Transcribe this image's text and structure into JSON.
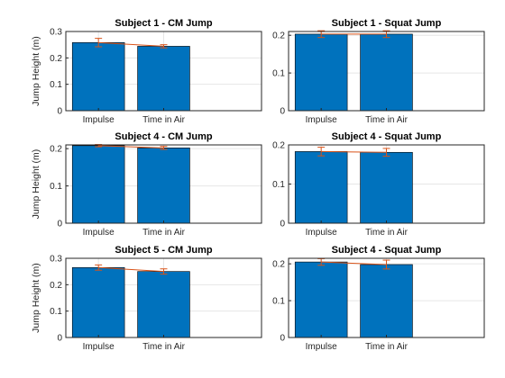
{
  "figure": {
    "bar_color": "#0072BD",
    "errorbar_color": "#D95319",
    "axis_color": "#262626",
    "grid_color": "#E6E6E6"
  },
  "chart_data": [
    {
      "type": "bar",
      "title": "Subject 1 - CM Jump",
      "ylabel": "Jump Height (m)",
      "categories": [
        "Impulse",
        "Time in Air"
      ],
      "values": [
        0.258,
        0.244
      ],
      "errors": [
        0.016,
        0.006
      ],
      "ylim": [
        0,
        0.3
      ],
      "yticks": [
        0,
        0.1,
        0.2,
        0.3
      ],
      "ytick_labels": [
        "0",
        "0.1",
        "0.2",
        "0.3"
      ],
      "grid": true
    },
    {
      "type": "bar",
      "title": "Subject 1 - Squat Jump",
      "ylabel": "",
      "categories": [
        "Impulse",
        "Time in Air"
      ],
      "values": [
        0.203,
        0.203
      ],
      "errors": [
        0.009,
        0.009
      ],
      "ylim": [
        0,
        0.21
      ],
      "yticks": [
        0,
        0.1,
        0.2
      ],
      "ytick_labels": [
        "0",
        "0.1",
        "0.2"
      ],
      "grid": true
    },
    {
      "type": "bar",
      "title": "Subject 4 - CM Jump",
      "ylabel": "Jump Height (m)",
      "categories": [
        "Impulse",
        "Time in Air"
      ],
      "values": [
        0.208,
        0.202
      ],
      "errors": [
        0.003,
        0.004
      ],
      "ylim": [
        0,
        0.21
      ],
      "yticks": [
        0,
        0.1,
        0.2
      ],
      "ytick_labels": [
        "0",
        "0.1",
        "0.2"
      ],
      "grid": true
    },
    {
      "type": "bar",
      "title": "Subject 4 - Squat Jump",
      "ylabel": "",
      "categories": [
        "Impulse",
        "Time in Air"
      ],
      "values": [
        0.183,
        0.181
      ],
      "errors": [
        0.011,
        0.01
      ],
      "ylim": [
        0,
        0.2
      ],
      "yticks": [
        0,
        0.1,
        0.2
      ],
      "ytick_labels": [
        "0",
        "0.1",
        "0.2"
      ],
      "grid": true
    },
    {
      "type": "bar",
      "title": "Subject 5 - CM Jump",
      "ylabel": "Jump Height (m)",
      "categories": [
        "Impulse",
        "Time in Air"
      ],
      "values": [
        0.265,
        0.25
      ],
      "errors": [
        0.01,
        0.01
      ],
      "ylim": [
        0,
        0.3
      ],
      "yticks": [
        0,
        0.1,
        0.2,
        0.3
      ],
      "ytick_labels": [
        "0",
        "0.1",
        "0.2",
        "0.3"
      ],
      "grid": true
    },
    {
      "type": "bar",
      "title": "Subject 4 - Squat Jump",
      "ylabel": "",
      "categories": [
        "Impulse",
        "Time in Air"
      ],
      "values": [
        0.205,
        0.198
      ],
      "errors": [
        0.009,
        0.012
      ],
      "ylim": [
        0,
        0.215
      ],
      "yticks": [
        0,
        0.1,
        0.2
      ],
      "ytick_labels": [
        "0",
        "0.1",
        "0.2"
      ],
      "grid": true
    }
  ]
}
